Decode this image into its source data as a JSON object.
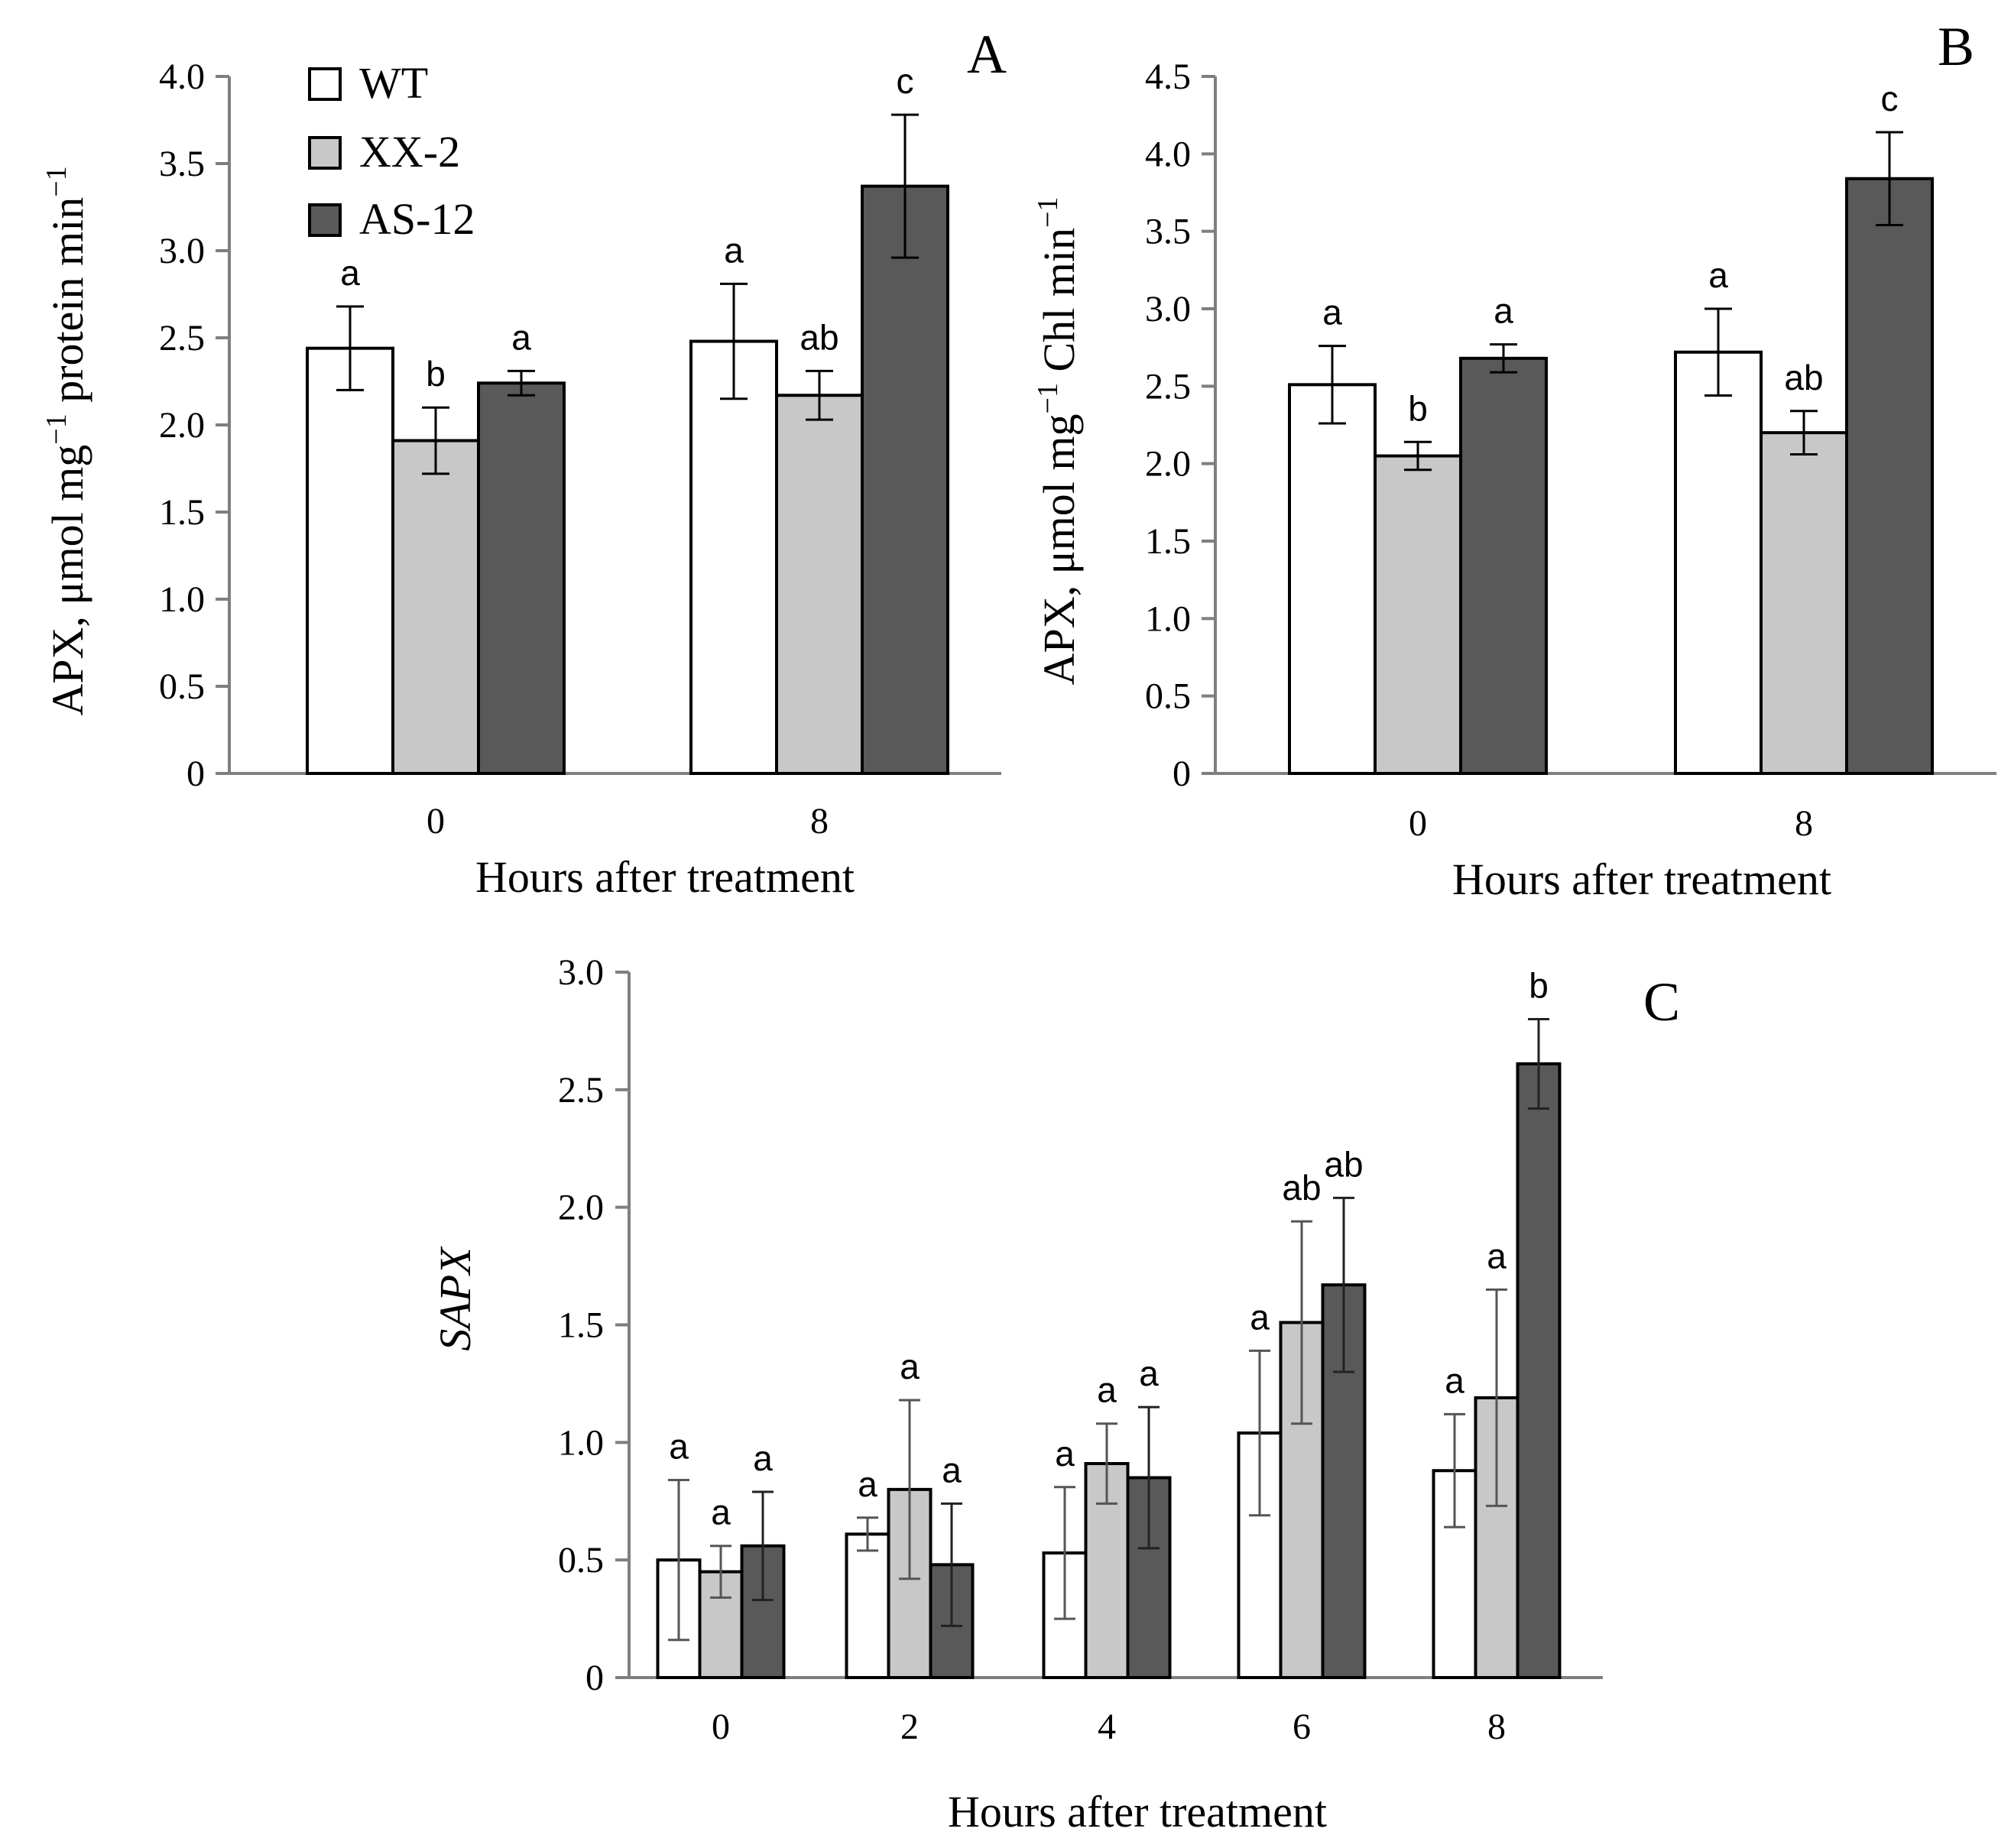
{
  "colors": {
    "WT": "#ffffff",
    "XX-2": "#c8c8c8",
    "AS-12": "#595959",
    "outline": "#000000",
    "axis": "#7f7f7f"
  },
  "legend": {
    "items": [
      "WT",
      "XX-2",
      "AS-12"
    ]
  },
  "chart_data": [
    {
      "type": "bar",
      "panel": "A",
      "title": "",
      "xlabel": "Hours after treatment",
      "ylabel_main": "APX, μmol mg",
      "ylabel_sup": "−1",
      "ylabel_mid": " protein min",
      "ylabel_sup2": "−1",
      "ylim": [
        0,
        4.0
      ],
      "ytick_labels": [
        "0",
        "0.5",
        "1.0",
        "1.5",
        "2.0",
        "2.5",
        "3.0",
        "3.5",
        "4.0"
      ],
      "categories": [
        "0",
        "8"
      ],
      "series": [
        {
          "name": "WT",
          "values": [
            2.44,
            2.48
          ],
          "errors": [
            0.24,
            0.33
          ],
          "letters": [
            "a",
            "a"
          ]
        },
        {
          "name": "XX-2",
          "values": [
            1.91,
            2.17
          ],
          "errors": [
            0.19,
            0.14
          ],
          "letters": [
            "b",
            "ab"
          ]
        },
        {
          "name": "AS-12",
          "values": [
            2.24,
            3.37
          ],
          "errors": [
            0.07,
            0.41
          ],
          "letters": [
            "a",
            "c"
          ]
        }
      ]
    },
    {
      "type": "bar",
      "panel": "B",
      "title": "",
      "xlabel": "Hours after treatment",
      "ylabel_main": "APX, μmol mg",
      "ylabel_sup": "−1",
      "ylabel_mid": " Chl min",
      "ylabel_sup2": "−1",
      "ylim": [
        0,
        4.5
      ],
      "ytick_labels": [
        "0",
        "0.5",
        "1.0",
        "1.5",
        "2.0",
        "2.5",
        "3.0",
        "3.5",
        "4.0",
        "4.5"
      ],
      "categories": [
        "0",
        "8"
      ],
      "series": [
        {
          "name": "WT",
          "values": [
            2.51,
            2.72
          ],
          "errors": [
            0.25,
            0.28
          ],
          "letters": [
            "a",
            "a"
          ]
        },
        {
          "name": "XX-2",
          "values": [
            2.05,
            2.2
          ],
          "errors": [
            0.09,
            0.14
          ],
          "letters": [
            "b",
            "ab"
          ]
        },
        {
          "name": "AS-12",
          "values": [
            2.68,
            3.84
          ],
          "errors": [
            0.09,
            0.3
          ],
          "letters": [
            "a",
            "c"
          ]
        }
      ]
    },
    {
      "type": "bar",
      "panel": "C",
      "title": "",
      "xlabel": "Hours after treatment",
      "ylabel_main": "SAPX",
      "ylim": [
        0,
        3.0
      ],
      "ytick_labels": [
        "0",
        "0.5",
        "1.0",
        "1.5",
        "2.0",
        "2.5",
        "3.0"
      ],
      "categories": [
        "0",
        "2",
        "4",
        "6",
        "8"
      ],
      "series": [
        {
          "name": "WT",
          "values": [
            0.5,
            0.61,
            0.53,
            1.04,
            0.88
          ],
          "errors": [
            0.34,
            0.07,
            0.28,
            0.35,
            0.24
          ],
          "letters": [
            "a",
            "a",
            "a",
            "a",
            "a"
          ]
        },
        {
          "name": "XX-2",
          "values": [
            0.45,
            0.8,
            0.91,
            1.51,
            1.19
          ],
          "errors": [
            0.11,
            0.38,
            0.17,
            0.43,
            0.46
          ],
          "letters": [
            "a",
            "a",
            "a",
            "ab",
            "a"
          ]
        },
        {
          "name": "AS-12",
          "values": [
            0.56,
            0.48,
            0.85,
            1.67,
            2.61
          ],
          "errors": [
            0.23,
            0.26,
            0.3,
            0.37,
            0.19
          ],
          "letters": [
            "a",
            "a",
            "a",
            "ab",
            "b"
          ]
        }
      ]
    }
  ]
}
